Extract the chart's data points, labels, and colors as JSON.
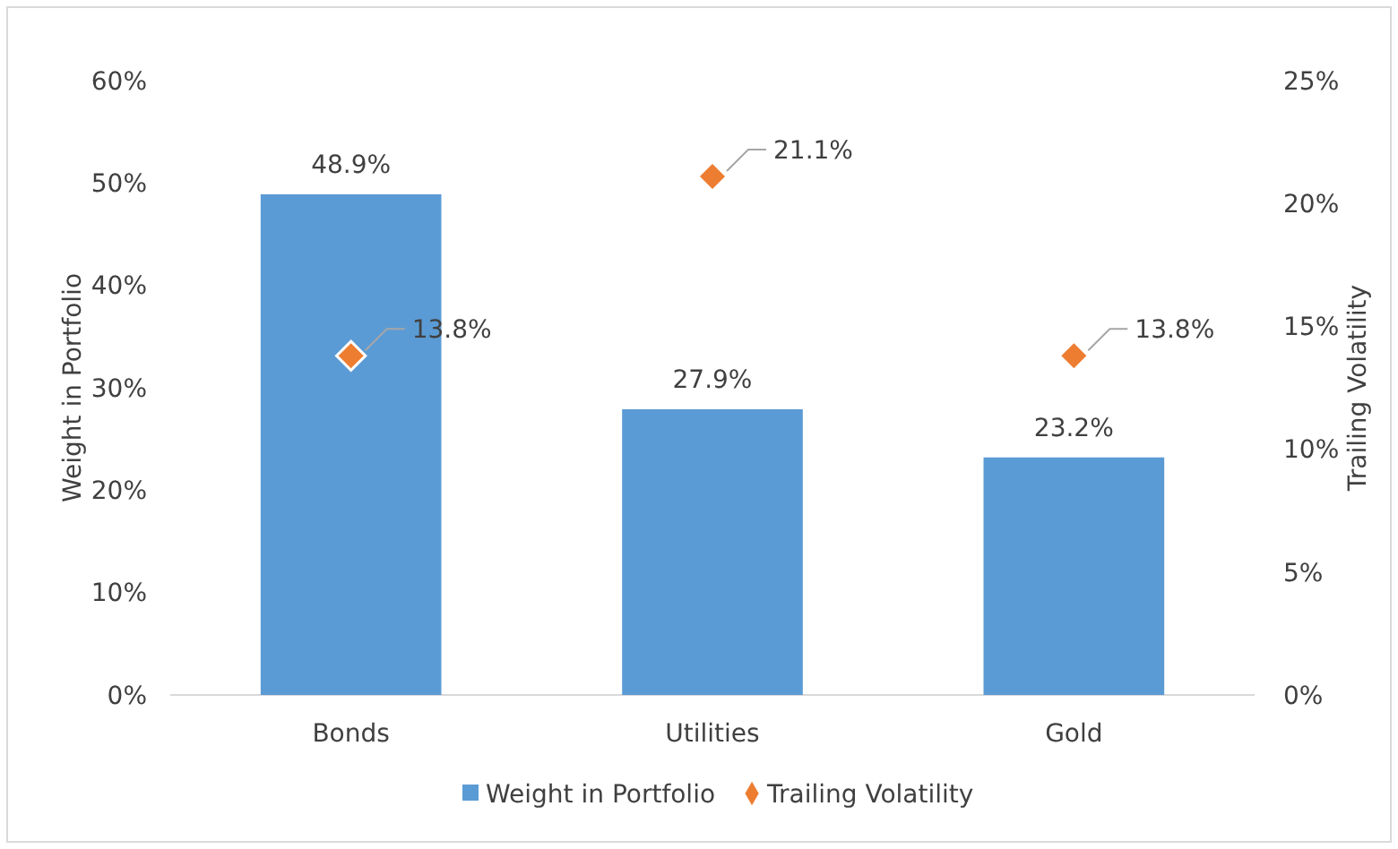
{
  "chart_data": {
    "type": "bar",
    "categories": [
      "Bonds",
      "Utilities",
      "Gold"
    ],
    "ylabel": "Weight in Portfolio",
    "y2label": "Trailing Volatility",
    "ylim": [
      0,
      60
    ],
    "yticks": [
      {
        "value": 0,
        "label": "0%"
      },
      {
        "value": 10,
        "label": "10%"
      },
      {
        "value": 20,
        "label": "20%"
      },
      {
        "value": 30,
        "label": "30%"
      },
      {
        "value": 40,
        "label": "40%"
      },
      {
        "value": 50,
        "label": "50%"
      },
      {
        "value": 60,
        "label": "60%"
      }
    ],
    "y2lim": [
      0,
      25
    ],
    "y2ticks": [
      {
        "value": 0,
        "label": "0%"
      },
      {
        "value": 5,
        "label": "5%"
      },
      {
        "value": 10,
        "label": "10%"
      },
      {
        "value": 15,
        "label": "15%"
      },
      {
        "value": 20,
        "label": "20%"
      },
      {
        "value": 25,
        "label": "25%"
      }
    ],
    "series": [
      {
        "name": "Weight in Portfolio",
        "color": "#5b9bd5",
        "values": [
          48.9,
          27.9,
          23.2
        ],
        "value_labels": [
          "48.9%",
          "27.9%",
          "23.2%"
        ]
      },
      {
        "name": "Trailing Volatility",
        "type": "scatter",
        "axis": "y2",
        "color": "#ed7d31",
        "values": [
          13.8,
          21.1,
          13.8
        ],
        "value_labels": [
          "13.8%",
          "21.1%",
          "13.8%"
        ]
      }
    ],
    "marker": "diamond",
    "grid": false,
    "legend": "bottom"
  }
}
